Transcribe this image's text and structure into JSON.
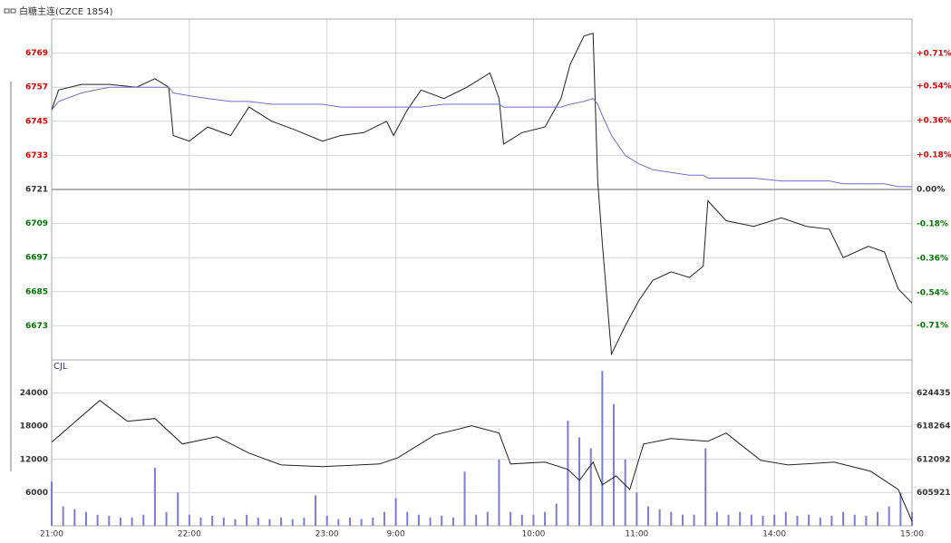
{
  "chart_data": [
    {
      "type": "line",
      "title": "白糖主连(CZCE 1854)",
      "base": 6721,
      "up_color": "#dd0000",
      "down_color": "#007700",
      "ylim": [
        6661,
        6781
      ],
      "yticks": [
        6673,
        6685,
        6697,
        6709,
        6721,
        6733,
        6745,
        6757,
        6769
      ],
      "y2lim": [
        -0.89,
        0.89
      ],
      "y2ticks": [
        {
          "value": -0.71,
          "label": "-0.71%"
        },
        {
          "value": -0.54,
          "label": "-0.54%"
        },
        {
          "value": -0.36,
          "label": "-0.36%"
        },
        {
          "value": -0.18,
          "label": "-0.18%"
        },
        {
          "value": 0,
          "label": "0.00%"
        },
        {
          "value": 0.18,
          "label": "+0.18%"
        },
        {
          "value": 0.36,
          "label": "+0.36%"
        },
        {
          "value": 0.54,
          "label": "+0.54%"
        },
        {
          "value": 0.71,
          "label": "+0.71%"
        }
      ],
      "x": [
        0,
        3,
        13,
        25,
        37,
        45,
        51,
        53,
        60,
        68,
        78,
        86,
        96,
        106,
        118,
        126,
        136,
        146,
        149,
        155,
        161,
        171,
        181,
        191,
        195,
        197,
        205,
        215,
        222,
        226,
        232,
        236,
        238,
        240,
        244,
        250,
        256,
        262,
        270,
        278,
        284,
        286,
        294,
        306,
        318,
        329,
        339,
        345,
        356,
        363,
        369,
        375
      ],
      "series": [
        {
          "color": "#222222",
          "values": [
            6749,
            6756,
            6758,
            6758,
            6757,
            6760,
            6757,
            6740,
            6738,
            6743,
            6740,
            6750,
            6745,
            6742,
            6738,
            6740,
            6741,
            6745,
            6740,
            6749,
            6756,
            6753,
            6757,
            6762,
            6753,
            6737,
            6741,
            6743,
            6753,
            6765,
            6775,
            6776,
            6724,
            6702,
            6663,
            6673,
            6682,
            6689,
            6692,
            6690,
            6694,
            6717,
            6710,
            6708,
            6711,
            6708,
            6707,
            6697,
            6701,
            6699,
            6686,
            6681
          ]
        },
        {
          "color": "#6f6fd0",
          "values": [
            6749,
            6752,
            6755,
            6757,
            6757,
            6757,
            6757,
            6755,
            6754,
            6753,
            6752,
            6752,
            6751,
            6751,
            6751,
            6750,
            6750,
            6750,
            6750,
            6750,
            6750,
            6751,
            6751,
            6751,
            6751,
            6750,
            6750,
            6750,
            6750,
            6751,
            6752,
            6753,
            6751,
            6747,
            6740,
            6733,
            6730,
            6728,
            6727,
            6726,
            6726,
            6725,
            6725,
            6725,
            6724,
            6724,
            6724,
            6723,
            6723,
            6723,
            6722,
            6722
          ]
        }
      ]
    },
    {
      "type": "bar",
      "label": "CJL",
      "xlim": [
        0,
        375
      ],
      "xticks": [
        {
          "value": 0,
          "label": "21:00"
        },
        {
          "value": 60,
          "label": "22:00"
        },
        {
          "value": 120,
          "label": "23:00"
        },
        {
          "value": 150,
          "label": "9:00"
        },
        {
          "value": 210,
          "label": "10:00"
        },
        {
          "value": 255,
          "label": "11:00"
        },
        {
          "value": 315,
          "label": "14:00"
        },
        {
          "value": 375,
          "label": "15:00"
        }
      ],
      "ylim": [
        0,
        30000
      ],
      "yticks": [
        6000,
        12000,
        18000,
        24000
      ],
      "y2lim": [
        599750,
        630600
      ],
      "y2ticks": [
        605921,
        612092,
        618264,
        624435
      ],
      "x": [
        0,
        5,
        10,
        15,
        20,
        25,
        30,
        35,
        40,
        45,
        50,
        55,
        60,
        65,
        70,
        75,
        80,
        85,
        90,
        95,
        100,
        105,
        110,
        115,
        120,
        125,
        130,
        135,
        140,
        145,
        150,
        155,
        160,
        165,
        170,
        175,
        180,
        185,
        190,
        195,
        200,
        205,
        210,
        215,
        220,
        225,
        230,
        235,
        240,
        245,
        250,
        255,
        260,
        265,
        270,
        275,
        280,
        285,
        290,
        295,
        300,
        305,
        310,
        315,
        320,
        325,
        330,
        335,
        340,
        345,
        350,
        355,
        360,
        365,
        370,
        375
      ],
      "series": [
        {
          "type": "bar",
          "color": "#7c7cd6",
          "values": [
            8000,
            3500,
            3000,
            2500,
            2000,
            1800,
            1500,
            1500,
            2000,
            10500,
            2500,
            6000,
            2000,
            1500,
            1800,
            1500,
            1200,
            2000,
            1500,
            1200,
            1500,
            1200,
            1500,
            5500,
            1800,
            1200,
            1500,
            1200,
            1500,
            2500,
            5000,
            2500,
            2000,
            1500,
            1800,
            1500,
            9800,
            2000,
            2500,
            12000,
            2500,
            2000,
            2000,
            2500,
            4000,
            19000,
            16000,
            14000,
            28000,
            22000,
            12000,
            6000,
            3500,
            3000,
            2500,
            2000,
            2000,
            14000,
            2500,
            2000,
            2500,
            2000,
            1800,
            2000,
            2500,
            1800,
            2000,
            1500,
            1800,
            2500,
            2000,
            1800,
            2500,
            3500,
            6000,
            2500
          ]
        },
        {
          "type": "line",
          "axis": "y2",
          "color": "#222222",
          "x": [
            0,
            21,
            33,
            45,
            57,
            72,
            86,
            100,
            118,
            143,
            151,
            167,
            183,
            195,
            200,
            215,
            225,
            230,
            236,
            240,
            246,
            252,
            258,
            270,
            286,
            294,
            300,
            309,
            321,
            341,
            357,
            369,
            375
          ],
          "values": [
            615300,
            623070,
            619180,
            619700,
            614960,
            616300,
            613270,
            611070,
            610740,
            611240,
            612430,
            616650,
            618340,
            616990,
            611240,
            611580,
            610230,
            608200,
            611580,
            607360,
            609045,
            606510,
            614960,
            615970,
            615470,
            616990,
            614960,
            611920,
            611070,
            611580,
            609890,
            606510,
            600600
          ]
        }
      ]
    }
  ]
}
